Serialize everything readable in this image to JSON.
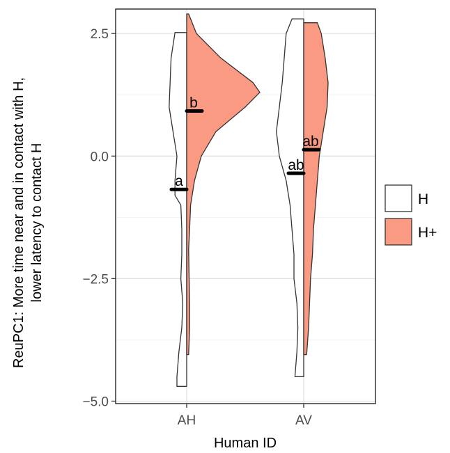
{
  "chart_data": {
    "type": "split-violin",
    "xlabel": "Human ID",
    "ylabel_lines": [
      "ReuPC1: More time near and in contact with H,",
      "lower latency to contact H"
    ],
    "ylim": [
      -5.05,
      3.0
    ],
    "yticks": [
      2.5,
      0.0,
      -2.5,
      -5.0
    ],
    "ytick_labels": [
      "2.5",
      "0.0",
      "−2.5",
      "−5.0"
    ],
    "grid": true,
    "legend_position": "right",
    "categories": [
      "AH",
      "AV"
    ],
    "series": [
      {
        "name": "H",
        "color": "#ffffff",
        "side": "left",
        "groups": [
          {
            "category": "AH",
            "mean": -0.68,
            "sig_label": "a",
            "density": [
              [
                2.52,
                0.12
              ],
              [
                2.0,
                0.16
              ],
              [
                1.5,
                0.17
              ],
              [
                1.0,
                0.18
              ],
              [
                0.5,
                0.14
              ],
              [
                0.0,
                0.1
              ],
              [
                -0.5,
                0.12
              ],
              [
                -0.8,
                0.12
              ],
              [
                -1.0,
                0.06
              ],
              [
                -1.5,
                0.05
              ],
              [
                -2.0,
                0.05
              ],
              [
                -2.5,
                0.06
              ],
              [
                -3.0,
                0.04
              ],
              [
                -3.5,
                0.05
              ],
              [
                -4.0,
                0.08
              ],
              [
                -4.5,
                0.1
              ],
              [
                -4.7,
                0.1
              ]
            ]
          },
          {
            "category": "AV",
            "mean": -0.35,
            "sig_label": "ab",
            "density": [
              [
                2.8,
                0.12
              ],
              [
                2.5,
                0.18
              ],
              [
                2.0,
                0.2
              ],
              [
                1.5,
                0.22
              ],
              [
                1.0,
                0.25
              ],
              [
                0.5,
                0.28
              ],
              [
                0.0,
                0.25
              ],
              [
                -0.5,
                0.18
              ],
              [
                -1.0,
                0.14
              ],
              [
                -1.5,
                0.12
              ],
              [
                -2.0,
                0.1
              ],
              [
                -2.5,
                0.1
              ],
              [
                -3.0,
                0.07
              ],
              [
                -3.5,
                0.06
              ],
              [
                -4.0,
                0.07
              ],
              [
                -4.5,
                0.09
              ]
            ]
          }
        ]
      },
      {
        "name": "H+",
        "color": "#fb9a82",
        "side": "right",
        "groups": [
          {
            "category": "AH",
            "mean": 0.92,
            "sig_label": "b",
            "density": [
              [
                2.9,
                0.02
              ],
              [
                2.5,
                0.1
              ],
              [
                2.0,
                0.35
              ],
              [
                1.5,
                0.68
              ],
              [
                1.3,
                0.75
              ],
              [
                1.0,
                0.6
              ],
              [
                0.5,
                0.3
              ],
              [
                0.0,
                0.15
              ],
              [
                -0.5,
                0.08
              ],
              [
                -1.0,
                0.04
              ],
              [
                -1.5,
                0.03
              ],
              [
                -1.9,
                0.02
              ],
              [
                -2.5,
                0.025
              ],
              [
                -3.0,
                0.03
              ],
              [
                -3.5,
                0.03
              ],
              [
                -4.05,
                0.02
              ]
            ]
          },
          {
            "category": "AV",
            "mean": 0.13,
            "sig_label": "ab",
            "density": [
              [
                2.72,
                0.14
              ],
              [
                2.5,
                0.18
              ],
              [
                2.0,
                0.22
              ],
              [
                1.5,
                0.25
              ],
              [
                1.0,
                0.24
              ],
              [
                0.5,
                0.2
              ],
              [
                0.0,
                0.16
              ],
              [
                -0.5,
                0.14
              ],
              [
                -1.0,
                0.12
              ],
              [
                -1.5,
                0.1
              ],
              [
                -2.0,
                0.09
              ],
              [
                -2.5,
                0.07
              ],
              [
                -3.0,
                0.06
              ],
              [
                -3.5,
                0.05
              ],
              [
                -4.05,
                0.03
              ]
            ]
          }
        ]
      }
    ]
  }
}
